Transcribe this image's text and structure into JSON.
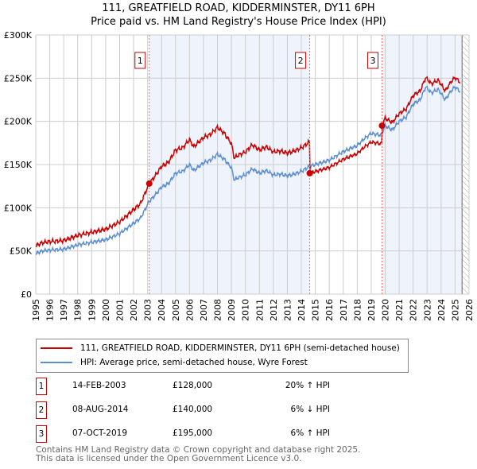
{
  "title": "111, GREATFIELD ROAD, KIDDERMINSTER, DY11 6PH",
  "subtitle": "Price paid vs. HM Land Registry's House Price Index (HPI)",
  "chart_data": {
    "type": "line",
    "xlim": [
      1995,
      2026
    ],
    "ylim": [
      0,
      300000
    ],
    "y_ticks": [
      0,
      50000,
      100000,
      150000,
      200000,
      250000,
      300000
    ],
    "y_tick_labels": [
      "£0",
      "£50K",
      "£100K",
      "£150K",
      "£200K",
      "£250K",
      "£300K"
    ],
    "x_ticks": [
      1995,
      1996,
      1997,
      1998,
      1999,
      2000,
      2001,
      2002,
      2003,
      2004,
      2005,
      2006,
      2007,
      2008,
      2009,
      2010,
      2011,
      2012,
      2013,
      2014,
      2015,
      2016,
      2017,
      2018,
      2019,
      2020,
      2021,
      2022,
      2023,
      2024,
      2025,
      2026
    ],
    "colors": {
      "property": "#cc0000",
      "hpi": "#5b8fd1"
    },
    "hpi": {
      "x": [
        1995.0,
        1995.5,
        1996,
        1997,
        1998,
        1999,
        2000,
        2001,
        2002,
        2002.5,
        2003.1,
        2003.5,
        2004,
        2004.5,
        2005,
        2005.5,
        2006,
        2006.3,
        2007,
        2007.5,
        2008,
        2008.5,
        2009,
        2009.2,
        2009.5,
        2010,
        2010.5,
        2011,
        2011.5,
        2012,
        2012.5,
        2013,
        2013.5,
        2014,
        2014.6,
        2015,
        2016,
        2017,
        2018,
        2018.5,
        2019,
        2019.7,
        2020,
        2020.5,
        2021,
        2021.5,
        2022,
        2022.5,
        2022.9,
        2023.3,
        2023.8,
        2024.3,
        2024.7,
        2025,
        2025.4
      ],
      "y": [
        47000,
        50000,
        51000,
        52000,
        57000,
        60000,
        63000,
        70000,
        82000,
        88000,
        107000,
        114000,
        124000,
        128000,
        140000,
        142000,
        150000,
        143000,
        152000,
        155000,
        162000,
        156000,
        146000,
        132000,
        135000,
        138000,
        145000,
        140000,
        143000,
        138000,
        139000,
        137000,
        139000,
        142000,
        148000,
        150000,
        155000,
        165000,
        172000,
        180000,
        186000,
        184000,
        195000,
        190000,
        200000,
        205000,
        220000,
        225000,
        240000,
        233000,
        237000,
        225000,
        235000,
        240000,
        234000
      ]
    },
    "sales": [
      {
        "n": "1",
        "x": 2003.12,
        "date": "14-FEB-2003",
        "price": 128000,
        "price_label": "£128,000",
        "hpi_diff": "20% ↑ HPI"
      },
      {
        "n": "2",
        "x": 2014.6,
        "date": "08-AUG-2014",
        "price": 140000,
        "price_label": "£140,000",
        "hpi_diff": "6% ↓ HPI"
      },
      {
        "n": "3",
        "x": 2019.77,
        "date": "07-OCT-2019",
        "price": 195000,
        "price_label": "£195,000",
        "hpi_diff": "6% ↑ HPI"
      }
    ],
    "legend": [
      "111, GREATFIELD ROAD, KIDDERMINSTER, DY11 6PH (semi-detached house)",
      "HPI: Average price, semi-detached house, Wyre Forest"
    ]
  },
  "footer": [
    "Contains HM Land Registry data © Crown copyright and database right 2025.",
    "This data is licensed under the Open Government Licence v3.0."
  ]
}
